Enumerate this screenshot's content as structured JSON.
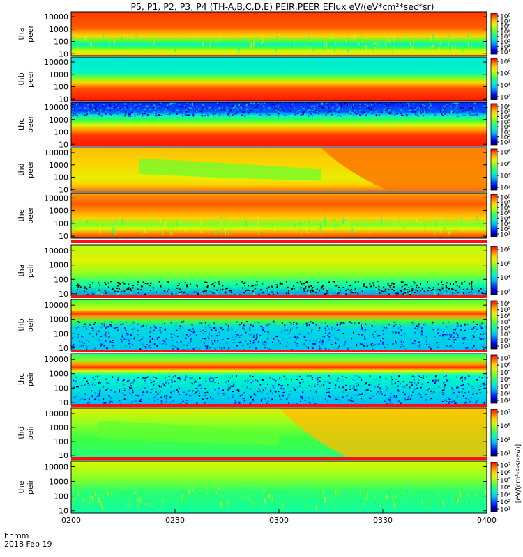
{
  "title": "P5, P1, P2, P3, P4 (TH-A,B,C,D,E) PEIR,PEER EFlux eV/(eV*cm²*sec*sr)",
  "x_corner_labels": [
    "hhmm",
    "2018 Feb 19"
  ],
  "colorbar_side_label": "[eV/(cm²-s-sr-eV)]",
  "chart_data": {
    "type": "heatmap",
    "x_ticks": [
      "0200",
      "0230",
      "0300",
      "0330",
      "0400"
    ],
    "x_range": [
      "0200",
      "0400"
    ],
    "y_scale": "log",
    "y_range": [
      7,
      25000
    ],
    "y_ticks": [
      10,
      100,
      1000,
      10000
    ],
    "panels": [
      {
        "probe": "tha",
        "species": "peer",
        "ylabel": [
          "tha",
          "peer"
        ],
        "colorbar_ticks": [
          "10⁸",
          "10⁷",
          "10⁶",
          "10⁵",
          "10⁴",
          "10³",
          "10²",
          "10¹"
        ],
        "style": "e_hot"
      },
      {
        "probe": "thb",
        "species": "peer",
        "ylabel": [
          "thb",
          "peer"
        ],
        "colorbar_ticks": [
          "10⁸",
          "10⁶",
          "10⁴",
          "10²"
        ],
        "style": "e_cool"
      },
      {
        "probe": "thc",
        "species": "peer",
        "ylabel": [
          "thc",
          "peer"
        ],
        "colorbar_ticks": [
          "10⁸",
          "10⁷",
          "10⁶",
          "10⁵",
          "10⁴",
          "10³",
          "10²",
          "10¹"
        ],
        "style": "e_noise"
      },
      {
        "probe": "thd",
        "species": "peer",
        "ylabel": [
          "thd",
          "peer"
        ],
        "colorbar_ticks": [
          "10⁸",
          "10⁶",
          "10⁴",
          "10²"
        ],
        "style": "e_warm"
      },
      {
        "probe": "the",
        "species": "peer",
        "ylabel": [
          "the",
          "peer"
        ],
        "colorbar_ticks": [
          "10⁸",
          "10⁷",
          "10⁶",
          "10⁵",
          "10⁴",
          "10³",
          "10²",
          "10¹"
        ],
        "style": "e_the"
      },
      {
        "probe": "tha",
        "species": "peir",
        "ylabel": [
          "tha",
          "peir"
        ],
        "colorbar_ticks": [
          "10⁸",
          "10⁶",
          "10⁴",
          "10²"
        ],
        "style": "i_speckle"
      },
      {
        "probe": "thb",
        "species": "peir",
        "ylabel": [
          "thb",
          "peir"
        ],
        "colorbar_ticks": [
          "10⁸",
          "10⁷",
          "10⁶",
          "10⁵",
          "10⁴",
          "10³",
          "10²",
          "10¹"
        ],
        "style": "i_band"
      },
      {
        "probe": "thc",
        "species": "peir",
        "ylabel": [
          "thc",
          "peir"
        ],
        "colorbar_ticks": [
          "10⁷",
          "10⁶",
          "10⁵",
          "10⁴",
          "10³",
          "10²",
          "10¹"
        ],
        "style": "i_band2"
      },
      {
        "probe": "thd",
        "species": "peir",
        "ylabel": [
          "thd",
          "peir"
        ],
        "colorbar_ticks": [
          "10⁷",
          "10⁵",
          "10³",
          "10¹"
        ],
        "style": "i_sweep"
      },
      {
        "probe": "the",
        "species": "peir",
        "ylabel": [
          "the",
          "peir"
        ],
        "colorbar_ticks": [
          "10⁷",
          "10⁶",
          "10⁵",
          "10⁴",
          "10³",
          "10²",
          "10¹"
        ],
        "style": "i_green"
      }
    ]
  }
}
